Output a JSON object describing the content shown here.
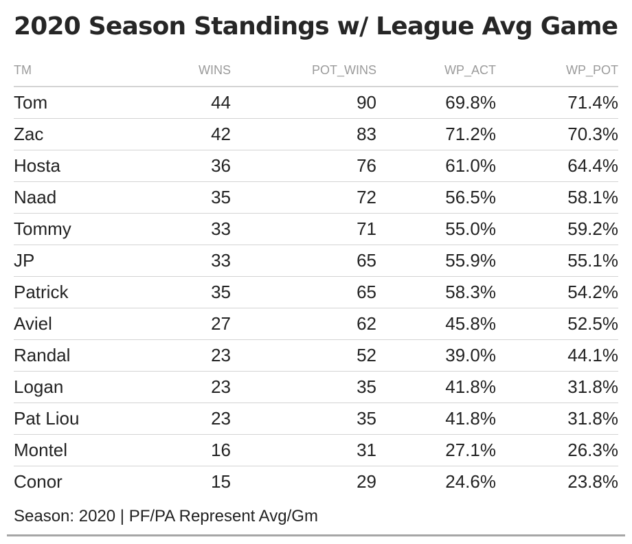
{
  "chart_data": {
    "type": "table",
    "title": "2020 Season Standings w/ League Avg Game",
    "columns": [
      "TM",
      "WINS",
      "POT_WINS",
      "WP_ACT",
      "WP_POT"
    ],
    "rows": [
      [
        "Tom",
        "44",
        "90",
        "69.8%",
        "71.4%"
      ],
      [
        "Zac",
        "42",
        "83",
        "71.2%",
        "70.3%"
      ],
      [
        "Hosta",
        "36",
        "76",
        "61.0%",
        "64.4%"
      ],
      [
        "Naad",
        "35",
        "72",
        "56.5%",
        "58.1%"
      ],
      [
        "Tommy",
        "33",
        "71",
        "55.0%",
        "59.2%"
      ],
      [
        "JP",
        "33",
        "65",
        "55.9%",
        "55.1%"
      ],
      [
        "Patrick",
        "35",
        "65",
        "58.3%",
        "54.2%"
      ],
      [
        "Aviel",
        "27",
        "62",
        "45.8%",
        "52.5%"
      ],
      [
        "Randal",
        "23",
        "52",
        "39.0%",
        "44.1%"
      ],
      [
        "Logan",
        "23",
        "35",
        "41.8%",
        "31.8%"
      ],
      [
        "Pat Liou",
        "23",
        "35",
        "41.8%",
        "31.8%"
      ],
      [
        "Montel",
        "16",
        "31",
        "27.1%",
        "26.3%"
      ],
      [
        "Conor",
        "15",
        "29",
        "24.6%",
        "23.8%"
      ]
    ],
    "footnote": "Season: 2020 | PF/PA Represent Avg/Gm"
  },
  "colors": {
    "text": "#222222",
    "header_text": "#9a9a9a",
    "rule": "#d3d3d3",
    "bottom_rule": "#a6a6a6"
  }
}
